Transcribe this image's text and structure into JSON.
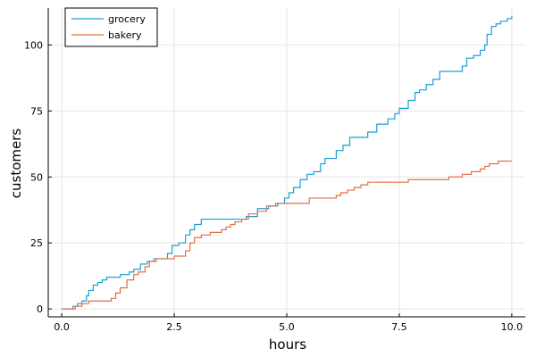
{
  "chart_data": {
    "type": "line",
    "title": "",
    "xlabel": "hours",
    "ylabel": "customers",
    "xlim": [
      -0.3,
      10.3
    ],
    "ylim": [
      -3,
      114
    ],
    "xticks": [
      0,
      2.5,
      5,
      7.5,
      10
    ],
    "xtick_labels": [
      "0.0",
      "2.5",
      "5.0",
      "7.5",
      "10.0"
    ],
    "yticks": [
      0,
      25,
      50,
      75,
      100
    ],
    "ytick_labels": [
      "0",
      "25",
      "50",
      "75",
      "100"
    ],
    "grid": true,
    "legend_position": "top-left",
    "step": true,
    "series": [
      {
        "name": "grocery",
        "color": "#1a9fd9",
        "points": [
          [
            0,
            0
          ],
          [
            0.25,
            1
          ],
          [
            0.35,
            2
          ],
          [
            0.45,
            3
          ],
          [
            0.55,
            5
          ],
          [
            0.6,
            7
          ],
          [
            0.7,
            9
          ],
          [
            0.8,
            10
          ],
          [
            0.9,
            11
          ],
          [
            1.0,
            12
          ],
          [
            1.2,
            12
          ],
          [
            1.3,
            13
          ],
          [
            1.5,
            14
          ],
          [
            1.6,
            15
          ],
          [
            1.75,
            17
          ],
          [
            1.9,
            18
          ],
          [
            2.05,
            19
          ],
          [
            2.3,
            19
          ],
          [
            2.35,
            21
          ],
          [
            2.45,
            24
          ],
          [
            2.6,
            25
          ],
          [
            2.75,
            28
          ],
          [
            2.85,
            30
          ],
          [
            2.95,
            32
          ],
          [
            3.1,
            34
          ],
          [
            3.35,
            34
          ],
          [
            3.6,
            34
          ],
          [
            3.85,
            34
          ],
          [
            4.1,
            35
          ],
          [
            4.35,
            38
          ],
          [
            4.6,
            39
          ],
          [
            4.8,
            40
          ],
          [
            4.95,
            42
          ],
          [
            5.05,
            44
          ],
          [
            5.15,
            46
          ],
          [
            5.3,
            49
          ],
          [
            5.45,
            51
          ],
          [
            5.6,
            52
          ],
          [
            5.75,
            55
          ],
          [
            5.85,
            57
          ],
          [
            6.0,
            57
          ],
          [
            6.1,
            60
          ],
          [
            6.25,
            62
          ],
          [
            6.4,
            65
          ],
          [
            6.6,
            65
          ],
          [
            6.8,
            67
          ],
          [
            7.0,
            70
          ],
          [
            7.25,
            72
          ],
          [
            7.4,
            74
          ],
          [
            7.5,
            76
          ],
          [
            7.7,
            79
          ],
          [
            7.85,
            82
          ],
          [
            7.95,
            83
          ],
          [
            8.1,
            85
          ],
          [
            8.25,
            87
          ],
          [
            8.4,
            90
          ],
          [
            8.55,
            90
          ],
          [
            8.75,
            90
          ],
          [
            8.9,
            92
          ],
          [
            9.0,
            95
          ],
          [
            9.15,
            96
          ],
          [
            9.3,
            98
          ],
          [
            9.4,
            100
          ],
          [
            9.45,
            104
          ],
          [
            9.55,
            107
          ],
          [
            9.65,
            108
          ],
          [
            9.75,
            109
          ],
          [
            9.9,
            110
          ],
          [
            10.0,
            111
          ]
        ]
      },
      {
        "name": "bakery",
        "color": "#e26f46",
        "points": [
          [
            0,
            0
          ],
          [
            0.3,
            1
          ],
          [
            0.45,
            2
          ],
          [
            0.6,
            3
          ],
          [
            0.8,
            3
          ],
          [
            1.1,
            4
          ],
          [
            1.2,
            6
          ],
          [
            1.3,
            8
          ],
          [
            1.45,
            11
          ],
          [
            1.6,
            13
          ],
          [
            1.7,
            14
          ],
          [
            1.85,
            16
          ],
          [
            1.95,
            18
          ],
          [
            2.1,
            19
          ],
          [
            2.35,
            19
          ],
          [
            2.5,
            20
          ],
          [
            2.75,
            22
          ],
          [
            2.85,
            25
          ],
          [
            2.95,
            27
          ],
          [
            3.1,
            28
          ],
          [
            3.3,
            29
          ],
          [
            3.55,
            30
          ],
          [
            3.65,
            31
          ],
          [
            3.75,
            32
          ],
          [
            3.85,
            33
          ],
          [
            4.0,
            34
          ],
          [
            4.15,
            36
          ],
          [
            4.35,
            37
          ],
          [
            4.55,
            39
          ],
          [
            4.75,
            40
          ],
          [
            5.1,
            40
          ],
          [
            5.5,
            40
          ],
          [
            5.5,
            42
          ],
          [
            5.9,
            42
          ],
          [
            6.1,
            43
          ],
          [
            6.2,
            44
          ],
          [
            6.35,
            45
          ],
          [
            6.5,
            46
          ],
          [
            6.65,
            47
          ],
          [
            6.8,
            48
          ],
          [
            7.2,
            48
          ],
          [
            7.5,
            48
          ],
          [
            7.7,
            49
          ],
          [
            8.5,
            49
          ],
          [
            8.6,
            50
          ],
          [
            8.9,
            51
          ],
          [
            9.1,
            52
          ],
          [
            9.3,
            53
          ],
          [
            9.4,
            54
          ],
          [
            9.5,
            55
          ],
          [
            9.7,
            56
          ],
          [
            10.0,
            56
          ]
        ]
      }
    ]
  }
}
